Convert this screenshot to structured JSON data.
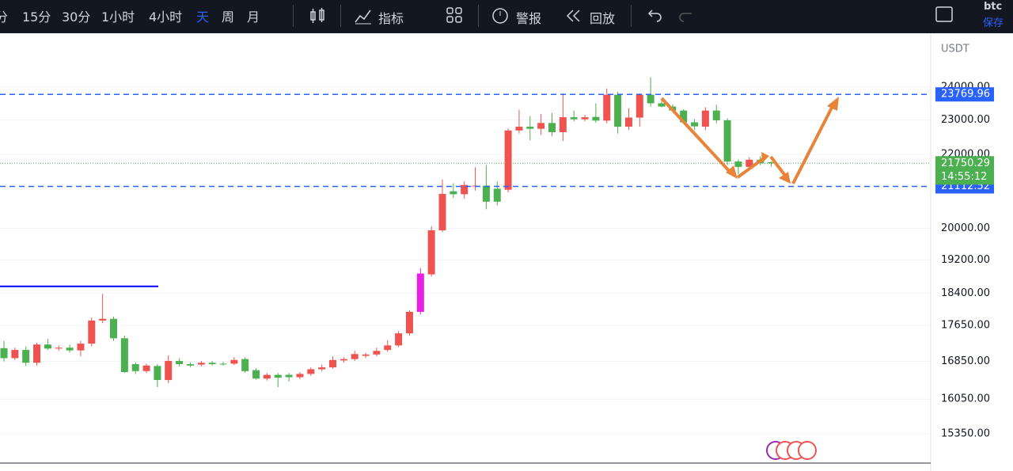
{
  "toolbar": {
    "intervals": [
      "分",
      "15分",
      "30分",
      "1小时",
      "4小时",
      "天",
      "周",
      "月"
    ],
    "selected_interval": 5,
    "indicators": "指标",
    "alert": "警报",
    "replay": "回放",
    "symbol": "btc",
    "save": "保存"
  },
  "chart_data": {
    "type": "candlestick",
    "currency": "USDT",
    "log_scale": true,
    "grid": true,
    "up_color": "#ef5350",
    "down_color": "#4caf50",
    "highlight_index": 38,
    "highlight_color": "#e91ee6",
    "ylim": [
      14780,
      25640
    ],
    "yticks": [
      {
        "value": 24000,
        "label": "24000.00"
      },
      {
        "value": 23000,
        "label": "23000.00"
      },
      {
        "value": 22000,
        "label": "22000.00"
      },
      {
        "value": 20000,
        "label": "20000.00"
      },
      {
        "value": 19200,
        "label": "19200.00"
      },
      {
        "value": 18400,
        "label": "18400.00"
      },
      {
        "value": 17650,
        "label": "17650.00"
      },
      {
        "value": 16850,
        "label": "16850.00"
      },
      {
        "value": 16050,
        "label": "16050.00"
      },
      {
        "value": 15350,
        "label": "15350.00"
      }
    ],
    "ohlc": [
      [
        17140,
        17300,
        16850,
        16920
      ],
      [
        16920,
        17150,
        16880,
        17100
      ],
      [
        17100,
        17180,
        16750,
        16820
      ],
      [
        16820,
        17260,
        16760,
        17220
      ],
      [
        17220,
        17350,
        17100,
        17130
      ],
      [
        17130,
        17200,
        17080,
        17150
      ],
      [
        17150,
        17220,
        17040,
        17090
      ],
      [
        17090,
        17300,
        16960,
        17240
      ],
      [
        17240,
        17830,
        17180,
        17760
      ],
      [
        17760,
        18380,
        17700,
        17800
      ],
      [
        17800,
        17850,
        17300,
        17360
      ],
      [
        17360,
        17420,
        16600,
        16620
      ],
      [
        16790,
        16830,
        16580,
        16640
      ],
      [
        16640,
        16800,
        16600,
        16760
      ],
      [
        16750,
        16790,
        16300,
        16450
      ],
      [
        16450,
        16980,
        16380,
        16860
      ],
      [
        16860,
        16920,
        16740,
        16790
      ],
      [
        16790,
        16830,
        16720,
        16760
      ],
      [
        16780,
        16860,
        16740,
        16820
      ],
      [
        16820,
        16860,
        16760,
        16790
      ],
      [
        16800,
        16840,
        16760,
        16790
      ],
      [
        16800,
        16940,
        16770,
        16880
      ],
      [
        16900,
        16940,
        16600,
        16640
      ],
      [
        16660,
        16700,
        16460,
        16480
      ],
      [
        16480,
        16600,
        16440,
        16560
      ],
      [
        16560,
        16600,
        16300,
        16500
      ],
      [
        16560,
        16600,
        16420,
        16510
      ],
      [
        16510,
        16620,
        16470,
        16580
      ],
      [
        16580,
        16720,
        16540,
        16680
      ],
      [
        16680,
        16780,
        16640,
        16720
      ],
      [
        16720,
        16960,
        16690,
        16880
      ],
      [
        16870,
        16940,
        16820,
        16900
      ],
      [
        16900,
        17080,
        16860,
        17010
      ],
      [
        16970,
        17040,
        16920,
        17000
      ],
      [
        17000,
        17150,
        16960,
        17080
      ],
      [
        17100,
        17320,
        17060,
        17200
      ],
      [
        17200,
        17520,
        17160,
        17470
      ],
      [
        17470,
        18000,
        17420,
        17960
      ],
      [
        17960,
        19000,
        17900,
        18870
      ],
      [
        18850,
        20050,
        18800,
        19950
      ],
      [
        19950,
        21300,
        19900,
        20910
      ],
      [
        20980,
        21200,
        20800,
        20900
      ],
      [
        20900,
        21250,
        20780,
        21150
      ],
      [
        21120,
        21640,
        21000,
        21130
      ],
      [
        21130,
        21700,
        20500,
        20700
      ],
      [
        21050,
        21250,
        20600,
        20700
      ],
      [
        21020,
        22750,
        20950,
        22690
      ],
      [
        22690,
        23300,
        22600,
        22800
      ],
      [
        22800,
        23120,
        22400,
        22740
      ],
      [
        22740,
        23180,
        22560,
        22910
      ],
      [
        22910,
        23200,
        22520,
        22640
      ],
      [
        22640,
        23800,
        22380,
        23080
      ],
      [
        23080,
        23280,
        22960,
        23020
      ],
      [
        23020,
        23150,
        22960,
        23080
      ],
      [
        23090,
        23500,
        22920,
        22980
      ],
      [
        22980,
        23950,
        22900,
        23760
      ],
      [
        23760,
        23850,
        22600,
        22800
      ],
      [
        22800,
        23350,
        22700,
        23070
      ],
      [
        23070,
        23800,
        22800,
        23760
      ],
      [
        23760,
        24300,
        23400,
        23500
      ],
      [
        23500,
        23600,
        23380,
        23400
      ],
      [
        23400,
        23460,
        23250,
        23280
      ],
      [
        23280,
        23320,
        22880,
        22930
      ],
      [
        22930,
        23020,
        22700,
        22810
      ],
      [
        22800,
        23380,
        22700,
        23280
      ],
      [
        23280,
        23450,
        22900,
        22990
      ],
      [
        22990,
        23050,
        21700,
        21800
      ],
      [
        21800,
        21860,
        21450,
        21650
      ],
      [
        21650,
        21920,
        21600,
        21850
      ],
      [
        21850,
        21950,
        21700,
        21750
      ],
      [
        21780,
        21800,
        21650,
        21750.29
      ]
    ],
    "price_lines": [
      {
        "value": 23769.96,
        "color": "#2962ff"
      },
      {
        "value": 21112.52,
        "color": "#2962ff"
      }
    ],
    "last_price": {
      "value": 21750.29,
      "countdown": "14:55:12",
      "color": "#4caf50"
    },
    "trend_line": {
      "value": 18560,
      "color": "#0000ff"
    }
  }
}
